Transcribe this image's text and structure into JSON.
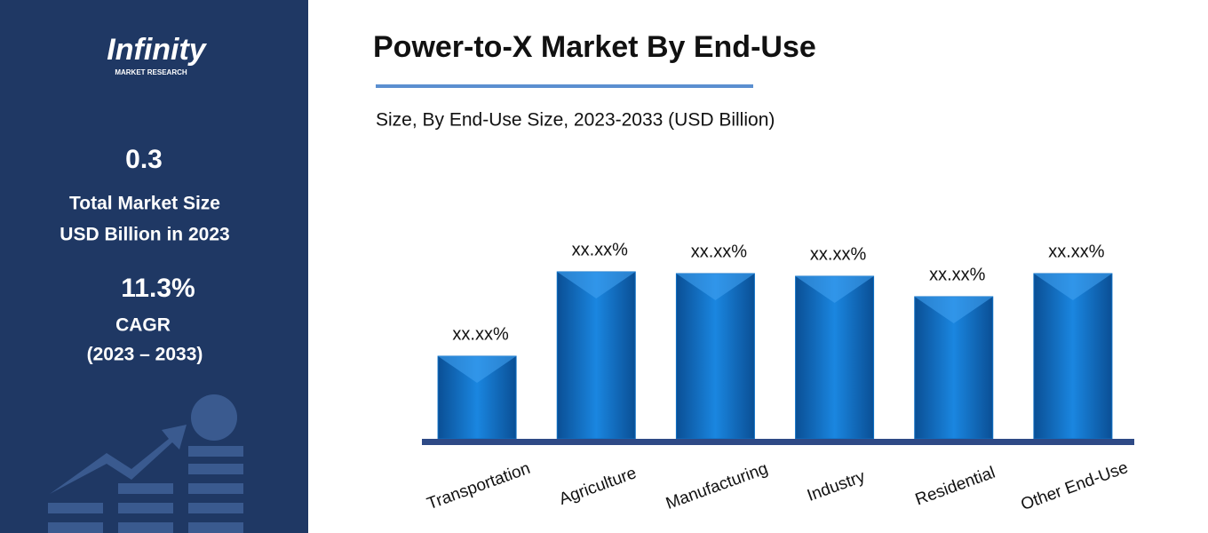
{
  "sidebar": {
    "logo": "Infinity",
    "logo_sub": "MARKET RESEARCH",
    "market_size": "0.3",
    "market_size_line1": "Total Market Size",
    "market_size_line2": "USD Billion in 2023",
    "cagr": "11.3%",
    "cagr_label": "CAGR",
    "cagr_period": "(2023 – 2033)"
  },
  "chart_data": {
    "type": "bar",
    "title": "Power-to-X Market By End-Use",
    "subtitle": "Size, By End-Use Size, 2023-2033 (USD Billion)",
    "categories": [
      "Transportation",
      "Agriculture",
      "Manufacturing",
      "Industry",
      "Residential",
      "Other End-Use"
    ],
    "values": [
      93,
      188,
      186,
      183,
      160,
      186
    ],
    "value_labels": [
      "xx.xx%",
      "xx.xx%",
      "xx.xx%",
      "xx.xx%",
      "xx.xx%",
      "xx.xx%"
    ],
    "color": "#0d6fc4"
  }
}
